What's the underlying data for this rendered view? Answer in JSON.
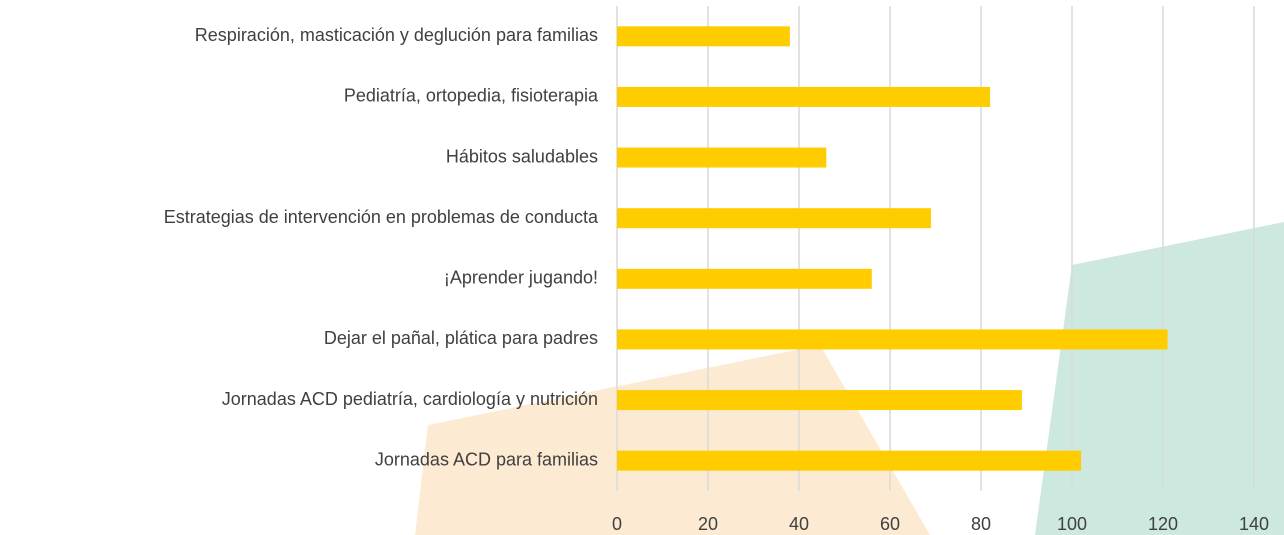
{
  "chart_data": {
    "type": "bar",
    "orientation": "horizontal",
    "categories": [
      "Respiración, masticación y deglución para familias",
      "Pediatría, ortopedia, fisioterapia",
      "Hábitos saludables",
      "Estrategias de intervención en problemas de conducta",
      "¡Aprender jugando!",
      "Dejar el pañal, plática para padres",
      "Jornadas ACD pediatría, cardiología y nutrición",
      "Jornadas ACD para familias"
    ],
    "values": [
      38,
      82,
      46,
      69,
      56,
      121,
      89,
      102
    ],
    "color": "#ffcc00",
    "xlim": [
      0,
      140
    ],
    "xticks": [
      0,
      20,
      40,
      60,
      80,
      100,
      120,
      140
    ],
    "grid": true
  }
}
